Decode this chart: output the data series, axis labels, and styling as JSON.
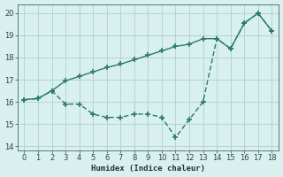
{
  "xlabel": "Humidex (Indice chaleur)",
  "bg_color": "#d8f0ee",
  "grid_color": "#b0d0cc",
  "line_color": "#2d7a6e",
  "xlim": [
    -0.5,
    18.5
  ],
  "ylim": [
    13.8,
    20.4
  ],
  "yticks": [
    14,
    15,
    16,
    17,
    18,
    19,
    20
  ],
  "xticks": [
    0,
    1,
    2,
    3,
    4,
    5,
    6,
    7,
    8,
    9,
    10,
    11,
    12,
    13,
    14,
    15,
    16,
    17,
    18
  ],
  "line1_x": [
    0,
    1,
    2,
    3,
    4,
    5,
    6,
    7,
    8,
    9,
    10,
    11,
    12,
    13,
    14,
    15,
    16,
    17,
    18
  ],
  "line1_y": [
    16.1,
    16.15,
    16.5,
    16.95,
    17.15,
    17.35,
    17.55,
    17.7,
    17.9,
    18.1,
    18.3,
    18.5,
    18.6,
    18.85,
    18.85,
    18.4,
    19.55,
    20.0,
    19.2
  ],
  "line2_x": [
    0,
    1,
    2,
    3,
    4,
    5,
    6,
    7,
    8,
    9,
    10,
    11,
    12,
    13,
    14,
    15,
    16,
    17,
    18
  ],
  "line2_y": [
    16.1,
    16.15,
    16.5,
    15.9,
    15.9,
    15.45,
    15.3,
    15.3,
    15.45,
    15.45,
    15.3,
    14.4,
    15.2,
    16.0,
    18.85,
    18.4,
    19.55,
    20.0,
    19.2
  ],
  "marker": "+",
  "marker_size": 5,
  "line_width": 1.0
}
